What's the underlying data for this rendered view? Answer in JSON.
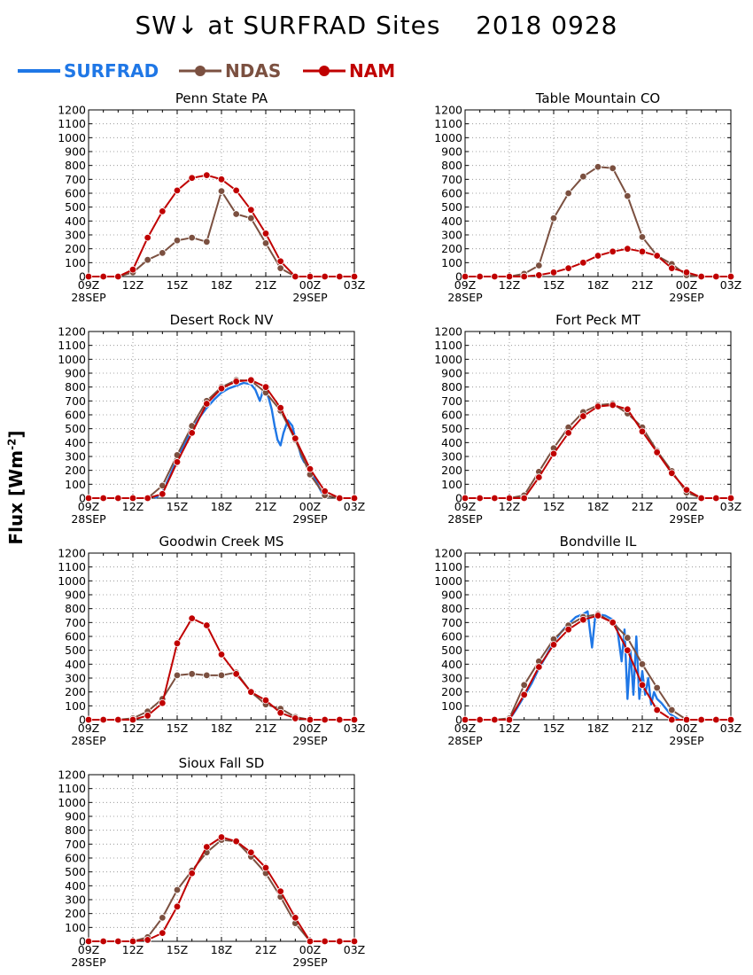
{
  "title": "SW↓ at SURFRAD Sites    2018 0928",
  "ylabel": "Flux [Wm",
  "ylabel_exp": "-2",
  "legend": [
    {
      "name": "SURFRAD",
      "color": "#1f77e6",
      "marker": false
    },
    {
      "name": "NDAS",
      "color": "#7b5040",
      "marker": true
    },
    {
      "name": "NAM",
      "color": "#c00000",
      "marker": true
    }
  ],
  "chart_data": [
    {
      "type": "line",
      "title": "Penn State PA",
      "x_hours": [
        9,
        10,
        11,
        12,
        13,
        14,
        15,
        16,
        17,
        18,
        19,
        20,
        21,
        22,
        23,
        24,
        25,
        26,
        27
      ],
      "x_ticks": [
        "09Z",
        "12Z",
        "15Z",
        "18Z",
        "21Z",
        "00Z",
        "03Z"
      ],
      "x_dates": [
        "28SEP",
        "29SEP"
      ],
      "ylim": [
        0,
        1200
      ],
      "y_ticks": [
        0,
        100,
        200,
        300,
        400,
        500,
        600,
        700,
        800,
        900,
        1000,
        1100,
        1200
      ],
      "grid": true,
      "series": [
        {
          "name": "NDAS",
          "values": [
            0,
            0,
            0,
            30,
            120,
            170,
            260,
            280,
            250,
            615,
            450,
            420,
            240,
            60,
            0,
            0,
            0,
            0,
            0
          ]
        },
        {
          "name": "NAM",
          "values": [
            0,
            0,
            0,
            50,
            280,
            470,
            620,
            710,
            730,
            700,
            620,
            480,
            310,
            110,
            0,
            0,
            0,
            0,
            0
          ]
        }
      ]
    },
    {
      "type": "line",
      "title": "Table Mountain CO",
      "x_hours": [
        9,
        10,
        11,
        12,
        13,
        14,
        15,
        16,
        17,
        18,
        19,
        20,
        21,
        22,
        23,
        24,
        25,
        26,
        27
      ],
      "x_ticks": [
        "09Z",
        "12Z",
        "15Z",
        "18Z",
        "21Z",
        "00Z",
        "03Z"
      ],
      "x_dates": [
        "28SEP",
        "29SEP"
      ],
      "ylim": [
        0,
        1200
      ],
      "y_ticks": [
        0,
        100,
        200,
        300,
        400,
        500,
        600,
        700,
        800,
        900,
        1000,
        1100,
        1200
      ],
      "grid": true,
      "series": [
        {
          "name": "NDAS",
          "values": [
            0,
            0,
            0,
            0,
            20,
            80,
            420,
            600,
            720,
            790,
            780,
            580,
            285,
            150,
            90,
            10,
            0,
            0,
            0
          ]
        },
        {
          "name": "NAM",
          "values": [
            0,
            0,
            0,
            0,
            0,
            10,
            30,
            60,
            100,
            150,
            180,
            200,
            180,
            150,
            60,
            30,
            0,
            0,
            0
          ]
        }
      ]
    },
    {
      "type": "line",
      "title": "Desert Rock NV",
      "x_hours": [
        9,
        10,
        11,
        12,
        13,
        14,
        15,
        16,
        17,
        18,
        19,
        20,
        21,
        22,
        23,
        24,
        25,
        26,
        27
      ],
      "x_ticks": [
        "09Z",
        "12Z",
        "15Z",
        "18Z",
        "21Z",
        "00Z",
        "03Z"
      ],
      "x_dates": [
        "28SEP",
        "29SEP"
      ],
      "ylim": [
        0,
        1200
      ],
      "y_ticks": [
        0,
        100,
        200,
        300,
        400,
        500,
        600,
        700,
        800,
        900,
        1000,
        1100,
        1200
      ],
      "grid": true,
      "series": [
        {
          "name": "SURFRAD",
          "x": [
            13.5,
            14,
            14.5,
            15,
            15.5,
            16,
            16.5,
            17,
            17.5,
            18,
            18.5,
            19,
            19.5,
            20,
            20.3,
            20.6,
            20.9,
            21.2,
            21.4,
            21.6,
            21.8,
            22,
            22.2,
            22.5,
            22.8,
            23,
            23.2,
            23.4,
            23.6,
            23.8,
            24,
            24.3,
            24.6,
            24.8,
            25
          ],
          "values": [
            0,
            40,
            160,
            280,
            390,
            490,
            580,
            650,
            710,
            760,
            790,
            810,
            830,
            820,
            780,
            700,
            800,
            720,
            640,
            520,
            420,
            380,
            470,
            560,
            520,
            430,
            380,
            300,
            260,
            240,
            200,
            150,
            80,
            40,
            0
          ]
        },
        {
          "name": "NDAS",
          "values": [
            0,
            0,
            0,
            0,
            0,
            90,
            310,
            520,
            700,
            800,
            850,
            845,
            760,
            630,
            420,
            170,
            20,
            0,
            0
          ]
        },
        {
          "name": "NAM",
          "values": [
            0,
            0,
            0,
            0,
            0,
            30,
            260,
            470,
            680,
            790,
            840,
            850,
            800,
            650,
            430,
            210,
            50,
            0,
            0
          ]
        }
      ]
    },
    {
      "type": "line",
      "title": "Fort Peck MT",
      "x_hours": [
        9,
        10,
        11,
        12,
        13,
        14,
        15,
        16,
        17,
        18,
        19,
        20,
        21,
        22,
        23,
        24,
        25,
        26,
        27
      ],
      "x_ticks": [
        "09Z",
        "12Z",
        "15Z",
        "18Z",
        "21Z",
        "00Z",
        "03Z"
      ],
      "x_dates": [
        "28SEP",
        "29SEP"
      ],
      "ylim": [
        0,
        1200
      ],
      "y_ticks": [
        0,
        100,
        200,
        300,
        400,
        500,
        600,
        700,
        800,
        900,
        1000,
        1100,
        1200
      ],
      "grid": true,
      "series": [
        {
          "name": "NDAS",
          "values": [
            0,
            0,
            0,
            0,
            20,
            190,
            360,
            510,
            620,
            670,
            680,
            610,
            510,
            340,
            195,
            40,
            0,
            0,
            0
          ]
        },
        {
          "name": "NAM",
          "values": [
            0,
            0,
            0,
            0,
            0,
            150,
            320,
            470,
            590,
            660,
            670,
            640,
            480,
            330,
            180,
            60,
            0,
            0,
            0
          ]
        }
      ]
    },
    {
      "type": "line",
      "title": "Goodwin Creek MS",
      "x_hours": [
        9,
        10,
        11,
        12,
        13,
        14,
        15,
        16,
        17,
        18,
        19,
        20,
        21,
        22,
        23,
        24,
        25,
        26,
        27
      ],
      "x_ticks": [
        "09Z",
        "12Z",
        "15Z",
        "18Z",
        "21Z",
        "00Z",
        "03Z"
      ],
      "x_dates": [
        "28SEP",
        "29SEP"
      ],
      "ylim": [
        0,
        1200
      ],
      "y_ticks": [
        0,
        100,
        200,
        300,
        400,
        500,
        600,
        700,
        800,
        900,
        1000,
        1100,
        1200
      ],
      "grid": true,
      "series": [
        {
          "name": "NDAS",
          "values": [
            0,
            0,
            0,
            10,
            60,
            150,
            320,
            330,
            320,
            320,
            340,
            200,
            110,
            80,
            20,
            0,
            0,
            0,
            0
          ]
        },
        {
          "name": "NAM",
          "values": [
            0,
            0,
            0,
            0,
            30,
            120,
            550,
            730,
            680,
            470,
            330,
            200,
            140,
            50,
            10,
            0,
            0,
            0,
            0
          ]
        }
      ]
    },
    {
      "type": "line",
      "title": "Bondville IL",
      "x_hours": [
        9,
        10,
        11,
        12,
        13,
        14,
        15,
        16,
        17,
        18,
        19,
        20,
        21,
        22,
        23,
        24,
        25,
        26,
        27
      ],
      "x_ticks": [
        "09Z",
        "12Z",
        "15Z",
        "18Z",
        "21Z",
        "00Z",
        "03Z"
      ],
      "x_dates": [
        "28SEP",
        "29SEP"
      ],
      "ylim": [
        0,
        1200
      ],
      "y_ticks": [
        0,
        100,
        200,
        300,
        400,
        500,
        600,
        700,
        800,
        900,
        1000,
        1100,
        1200
      ],
      "grid": true,
      "series": [
        {
          "name": "SURFRAD",
          "x": [
            12,
            12.5,
            13,
            13.5,
            14,
            14.5,
            15,
            15.5,
            16,
            16.5,
            17,
            17.3,
            17.6,
            17.8,
            18,
            18.5,
            19,
            19.3,
            19.6,
            19.8,
            20,
            20.2,
            20.4,
            20.6,
            20.8,
            21,
            21.2,
            21.4,
            21.6,
            21.8,
            22,
            22.3,
            22.6,
            22.9,
            23.2,
            23.5
          ],
          "values": [
            0,
            80,
            170,
            260,
            370,
            460,
            560,
            630,
            690,
            740,
            760,
            780,
            520,
            730,
            760,
            750,
            720,
            660,
            420,
            650,
            150,
            500,
            180,
            600,
            150,
            350,
            180,
            300,
            110,
            200,
            150,
            120,
            80,
            40,
            20,
            0
          ]
        },
        {
          "name": "NDAS",
          "values": [
            0,
            0,
            0,
            10,
            250,
            420,
            580,
            680,
            740,
            760,
            700,
            590,
            400,
            230,
            70,
            0,
            0,
            0,
            0
          ]
        },
        {
          "name": "NAM",
          "values": [
            0,
            0,
            0,
            0,
            180,
            380,
            540,
            650,
            720,
            750,
            700,
            500,
            250,
            70,
            0,
            0,
            0,
            0,
            0
          ]
        }
      ]
    },
    {
      "type": "line",
      "title": "Sioux Fall SD",
      "x_hours": [
        9,
        10,
        11,
        12,
        13,
        14,
        15,
        16,
        17,
        18,
        19,
        20,
        21,
        22,
        23,
        24,
        25,
        26,
        27
      ],
      "x_ticks": [
        "09Z",
        "12Z",
        "15Z",
        "18Z",
        "21Z",
        "00Z",
        "03Z"
      ],
      "x_dates": [
        "28SEP",
        "29SEP"
      ],
      "ylim": [
        0,
        1200
      ],
      "y_ticks": [
        0,
        100,
        200,
        300,
        400,
        500,
        600,
        700,
        800,
        900,
        1000,
        1100,
        1200
      ],
      "grid": true,
      "series": [
        {
          "name": "NDAS",
          "values": [
            0,
            0,
            0,
            0,
            30,
            170,
            370,
            510,
            640,
            730,
            720,
            610,
            490,
            320,
            130,
            0,
            0,
            0,
            0
          ]
        },
        {
          "name": "NAM",
          "values": [
            0,
            0,
            0,
            0,
            10,
            60,
            250,
            490,
            680,
            750,
            720,
            640,
            530,
            360,
            170,
            0,
            0,
            0,
            0
          ]
        }
      ]
    }
  ]
}
